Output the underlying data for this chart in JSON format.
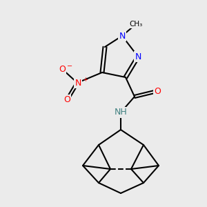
{
  "bg_color": "#ebebeb",
  "bond_color": "#000000",
  "bond_width": 1.5,
  "atom_colors": {
    "N": "#0000ff",
    "O": "#ff0000",
    "C": "#000000",
    "H": "#408080"
  },
  "font_size_atom": 9,
  "font_size_small": 7.5
}
